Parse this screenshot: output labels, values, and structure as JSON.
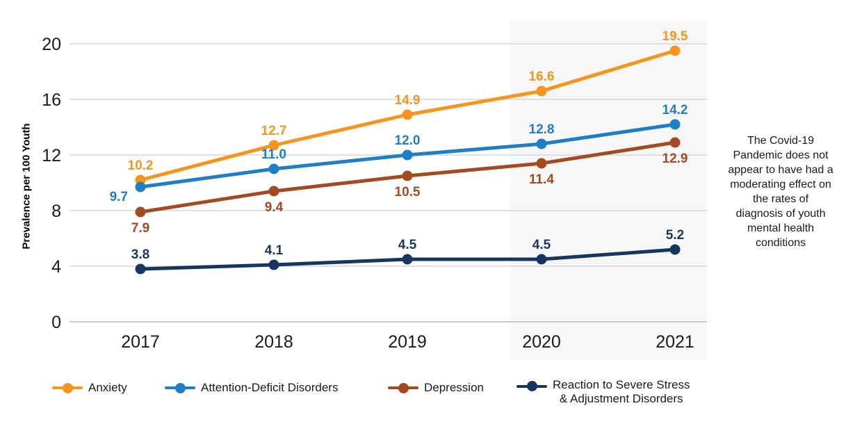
{
  "chart_data": {
    "type": "line",
    "title": "",
    "xlabel": "",
    "ylabel": "Prevalence per 100 Youth",
    "x_labels": [
      "2017",
      "2018",
      "2019",
      "2020",
      "2021"
    ],
    "y_ticks": [
      0,
      4,
      8,
      12,
      16,
      20
    ],
    "ylim": [
      0,
      21
    ],
    "grid": true,
    "legend_position": "bottom",
    "highlight_region": {
      "x_start_label": "2020",
      "x_end_label": "2021",
      "color": "#F7F7F7"
    },
    "series": [
      {
        "name": "Anxiety",
        "color": "#F7941E",
        "values": [
          10.2,
          12.7,
          14.9,
          16.6,
          19.5
        ],
        "label_position": "above"
      },
      {
        "name": "Attention-Deficit Disorders",
        "color": "#1F7EC6",
        "values": [
          9.7,
          11.0,
          12.0,
          12.8,
          14.2
        ],
        "label_position": "above",
        "label_overrides": {
          "0": "below-left"
        }
      },
      {
        "name": "Depression",
        "color": "#A34A21",
        "values": [
          7.9,
          9.4,
          10.5,
          11.4,
          12.9
        ],
        "label_position": "below"
      },
      {
        "name": "Reaction to Severe Stress & Adjustment Disorders",
        "color": "#16365F",
        "values": [
          3.8,
          4.1,
          4.5,
          4.5,
          5.2
        ],
        "label_position": "above"
      }
    ],
    "annotation": "The Covid-19\nPandemic does not\nappear to have had a\nmoderating effect on\nthe rates of\ndiagnosis of youth\nmental health\nconditions",
    "colors": {
      "gridline": "#CFD7DE",
      "zero_line": "#C3CDD5",
      "tick_text": "#1a1a1a",
      "background": "#ffffff"
    }
  },
  "legend": {
    "items": [
      {
        "label": "Anxiety"
      },
      {
        "label": "Attention-Deficit Disorders"
      },
      {
        "label": "Depression"
      },
      {
        "label": "Reaction to Severe Stress\n& Adjustment Disorders"
      }
    ]
  }
}
